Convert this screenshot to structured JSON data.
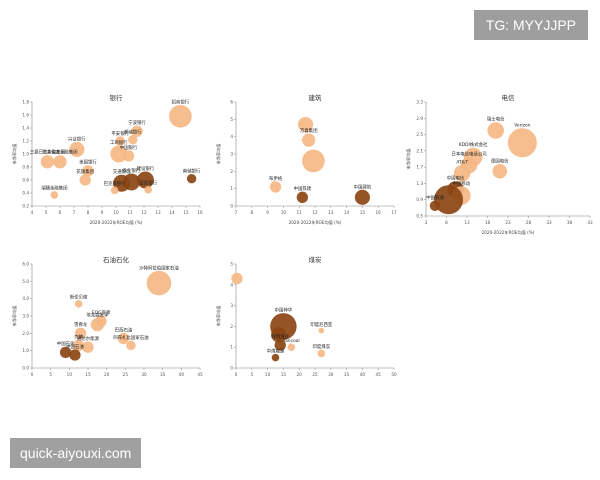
{
  "watermarks": {
    "top": "TG: MYYJJPP",
    "bottom": "quick-aiyouxi.com"
  },
  "chart_data": [
    {
      "type": "scatter",
      "title": "银行",
      "xlabel": "2020-2022年ROE均值 (%)",
      "ylabel": "市净率均值",
      "xlim": [
        4,
        16
      ],
      "ylim": [
        0.2,
        1.8
      ],
      "xticks": [
        "4",
        "5",
        "6",
        "7",
        "8",
        "9",
        "10",
        "11",
        "12",
        "13",
        "14",
        "15",
        "16"
      ],
      "yticks": [
        "0.2",
        "0.4",
        "0.6",
        "0.8",
        "1.0",
        "1.2",
        "1.4",
        "1.6",
        "1.8"
      ],
      "points": [
        {
          "label": "招商银行",
          "x": 14.6,
          "y": 1.58,
          "size": 12,
          "color": "#f5b886"
        },
        {
          "label": "宁波银行",
          "x": 11.5,
          "y": 1.35,
          "size": 6,
          "color": "#f5b886"
        },
        {
          "label": "邮储银行",
          "x": 11.2,
          "y": 1.22,
          "size": 5,
          "color": "#f5b886"
        },
        {
          "label": "平安银行",
          "x": 10.3,
          "y": 1.2,
          "size": 5,
          "color": "#f5b886"
        },
        {
          "label": "兴业银行",
          "x": 7.2,
          "y": 1.07,
          "size": 8,
          "color": "#f5b886"
        },
        {
          "label": "工商银行",
          "x": 10.2,
          "y": 1.0,
          "size": 9,
          "color": "#f5b886"
        },
        {
          "label": "中国银行",
          "x": 10.9,
          "y": 0.97,
          "size": 6,
          "color": "#f5b886"
        },
        {
          "label": "三井住友金融集团",
          "x": 6.0,
          "y": 0.88,
          "size": 7,
          "color": "#f5b886"
        },
        {
          "label": "三菱日联金融集团",
          "x": 5.1,
          "y": 0.88,
          "size": 7,
          "color": "#f5b886"
        },
        {
          "label": "美国银行",
          "x": 8.0,
          "y": 0.74,
          "size": 6,
          "color": "#f5b886"
        },
        {
          "label": "花旗集团",
          "x": 7.8,
          "y": 0.6,
          "size": 6,
          "color": "#f5b886"
        },
        {
          "label": "瑞穗金融集团",
          "x": 5.6,
          "y": 0.37,
          "size": 4,
          "color": "#f5b886"
        },
        {
          "label": "交通银行",
          "x": 10.4,
          "y": 0.55,
          "size": 9,
          "color": "#8b4513"
        },
        {
          "label": "农业银行",
          "x": 11.1,
          "y": 0.57,
          "size": 9,
          "color": "#8b4513"
        },
        {
          "label": "建设银行",
          "x": 12.1,
          "y": 0.6,
          "size": 9,
          "color": "#8b4513"
        },
        {
          "label": "南储银行",
          "x": 15.4,
          "y": 0.62,
          "size": 5,
          "color": "#8b4513"
        },
        {
          "label": "巴克莱银行",
          "x": 9.9,
          "y": 0.44,
          "size": 4,
          "color": "#f5b886"
        },
        {
          "label": "富国银行",
          "x": 12.3,
          "y": 0.45,
          "size": 4,
          "color": "#f5b886"
        }
      ]
    },
    {
      "type": "scatter",
      "title": "建筑",
      "xlabel": "2020-2022年ROE均值 (%)",
      "ylabel": "市净率均值",
      "xlim": [
        7,
        17
      ],
      "ylim": [
        0,
        6
      ],
      "xticks": [
        "7",
        "8",
        "9",
        "10",
        "11",
        "12",
        "13",
        "14",
        "15",
        "16",
        "17"
      ],
      "yticks": [
        "0",
        "1",
        "2",
        "3",
        "4",
        "5",
        "6"
      ],
      "points": [
        {
          "label": "",
          "x": 11.4,
          "y": 4.7,
          "size": 8,
          "color": "#f5b886"
        },
        {
          "label": "万喜集团",
          "x": 11.6,
          "y": 3.8,
          "size": 7,
          "color": "#f5b886"
        },
        {
          "label": "",
          "x": 11.9,
          "y": 2.6,
          "size": 12,
          "color": "#f5b886"
        },
        {
          "label": "布伊格",
          "x": 9.5,
          "y": 1.1,
          "size": 6,
          "color": "#f5b886"
        },
        {
          "label": "中国铁建",
          "x": 11.2,
          "y": 0.5,
          "size": 6,
          "color": "#8b4513"
        },
        {
          "label": "中国建筑",
          "x": 15.0,
          "y": 0.5,
          "size": 8,
          "color": "#8b4513"
        }
      ]
    },
    {
      "type": "scatter",
      "title": "电信",
      "xlabel": "2020-2022年ROE均值 (%)",
      "ylabel": "市净率均值",
      "xlim": [
        3,
        43
      ],
      "ylim": [
        0.5,
        3.3
      ],
      "xticks": [
        "3",
        "8",
        "13",
        "18",
        "23",
        "28",
        "33",
        "38",
        "43"
      ],
      "yticks": [
        "0.5",
        "0.9",
        "1.3",
        "1.7",
        "2.1",
        "2.5",
        "2.9",
        "3.3"
      ],
      "points": [
        {
          "label": "Verizon",
          "x": 26.5,
          "y": 2.3,
          "size": 14,
          "color": "#f5b886"
        },
        {
          "label": "德国电信",
          "x": 21.0,
          "y": 1.6,
          "size": 7,
          "color": "#f5b886"
        },
        {
          "label": "瑞士电信",
          "x": 20.0,
          "y": 2.6,
          "size": 8,
          "color": "#f5b886"
        },
        {
          "label": "KDDI株式会社",
          "x": 14.5,
          "y": 1.95,
          "size": 9,
          "color": "#f5b886"
        },
        {
          "label": "日本电信电话公司",
          "x": 13.5,
          "y": 1.75,
          "size": 8,
          "color": "#f5b886"
        },
        {
          "label": "AT&T",
          "x": 11.8,
          "y": 1.55,
          "size": 8,
          "color": "#f5b886"
        },
        {
          "label": "中国电信",
          "x": 10.2,
          "y": 1.15,
          "size": 8,
          "color": "#8b4513"
        },
        {
          "label": "中国移动",
          "x": 11.6,
          "y": 1.0,
          "size": 9,
          "color": "#f5b886"
        },
        {
          "label": "中国联通",
          "x": 5.2,
          "y": 0.75,
          "size": 5,
          "color": "#8b4513"
        },
        {
          "label": "",
          "x": 8.5,
          "y": 0.9,
          "size": 14,
          "color": "#8b4513"
        }
      ]
    },
    {
      "type": "scatter",
      "title": "石油石化",
      "xlabel": "",
      "ylabel": "市净率均值",
      "xlim": [
        0,
        45
      ],
      "ylim": [
        0,
        6
      ],
      "xticks": [
        "0",
        "5",
        "10",
        "15",
        "20",
        "25",
        "30",
        "35",
        "40",
        "45"
      ],
      "yticks": [
        "0.0",
        "1.0",
        "2.0",
        "3.0",
        "4.0",
        "5.0",
        "6.0"
      ],
      "points": [
        {
          "label": "沙特阿拉伯国家石油",
          "x": 34.0,
          "y": 4.9,
          "size": 13,
          "color": "#f5b886"
        },
        {
          "label": "斯伦贝谢",
          "x": 12.5,
          "y": 3.7,
          "size": 4,
          "color": "#f5b886"
        },
        {
          "label": "埃克森美孚",
          "x": 17.5,
          "y": 2.5,
          "size": 7,
          "color": "#f5b886"
        },
        {
          "label": "EOG资源",
          "x": 18.5,
          "y": 2.7,
          "size": 6,
          "color": "#f5b886"
        },
        {
          "label": "雪佛龙",
          "x": 13.0,
          "y": 2.0,
          "size": 6,
          "color": "#f5b886"
        },
        {
          "label": "壳牌",
          "x": 12.5,
          "y": 1.3,
          "size": 6,
          "color": "#f5b886"
        },
        {
          "label": "道达尔能源",
          "x": 15.0,
          "y": 1.2,
          "size": 6,
          "color": "#f5b886"
        },
        {
          "label": "巴西石油",
          "x": 24.5,
          "y": 1.7,
          "size": 6,
          "color": "#f5b886"
        },
        {
          "label": "阿布扎比国家石油",
          "x": 26.5,
          "y": 1.3,
          "size": 5,
          "color": "#f5b886"
        },
        {
          "label": "中国石化",
          "x": 9.0,
          "y": 0.9,
          "size": 6,
          "color": "#8b4513"
        },
        {
          "label": "中国石油",
          "x": 11.5,
          "y": 0.75,
          "size": 6,
          "color": "#8b4513"
        }
      ]
    },
    {
      "type": "scatter",
      "title": "煤炭",
      "xlabel": "",
      "ylabel": "市净率均值",
      "xlim": [
        0,
        50
      ],
      "ylim": [
        0,
        5
      ],
      "xticks": [
        "0",
        "5",
        "10",
        "15",
        "20",
        "25",
        "30",
        "35",
        "40",
        "45",
        "50"
      ],
      "yticks": [
        "0",
        "1",
        "2",
        "3",
        "4",
        "5"
      ],
      "points": [
        {
          "label": "",
          "x": 0.3,
          "y": 4.3,
          "size": 6,
          "color": "#f5b886"
        },
        {
          "label": "中国神华",
          "x": 15.0,
          "y": 2.0,
          "size": 14,
          "color": "#8b4513"
        },
        {
          "label": "",
          "x": 13.5,
          "y": 1.6,
          "size": 8,
          "color": "#8b4513"
        },
        {
          "label": "陕西煤业",
          "x": 14.0,
          "y": 1.1,
          "size": 6,
          "color": "#8b4513"
        },
        {
          "label": "Yancoal",
          "x": 17.5,
          "y": 1.0,
          "size": 4,
          "color": "#f5b886"
        },
        {
          "label": "印度煤炭",
          "x": 27.0,
          "y": 0.7,
          "size": 4,
          "color": "#f5b886"
        },
        {
          "label": "印度尼西亚",
          "x": 27.0,
          "y": 1.8,
          "size": 3,
          "color": "#f5b886"
        },
        {
          "label": "中煤能源",
          "x": 12.5,
          "y": 0.5,
          "size": 4,
          "color": "#8b4513"
        }
      ]
    }
  ]
}
